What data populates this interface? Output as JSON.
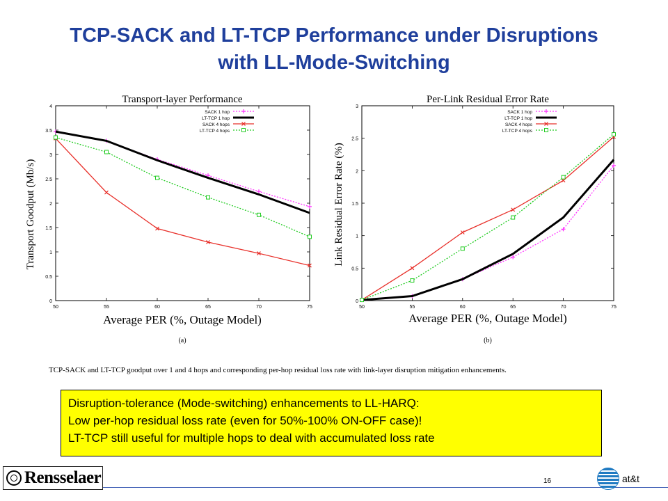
{
  "slide": {
    "title_line1": "TCP-SACK and LT-TCP Performance under Disruptions",
    "title_line2": "with LL-Mode-Switching",
    "caption": "TCP-SACK and LT-TCP goodput over 1 and 4 hops and corresponding per-hop residual loss rate with link-layer disruption mitigation enhancements.",
    "note_lines": [
      "Disruption-tolerance (Mode-switching) enhancements to LL-HARQ:",
      "Low per-hop residual loss rate (even for 50%-100% ON-OFF case)!",
      "LT-TCP still useful for multiple hops to deal with accumulated loss rate"
    ],
    "page_number": "16",
    "logo_left_text": "Rensselaer",
    "logo_right_text": "at&t",
    "colors": {
      "title": "#1f3f9c",
      "note_bg": "#ffff00",
      "footer_line": "#3b5bb3"
    }
  },
  "chart_data": [
    {
      "type": "line",
      "title": "Transport-layer Performance",
      "xlabel": "Average PER (%, Outage Model)",
      "ylabel": "Transport Goodput (Mb/s)",
      "sublabel": "(a)",
      "xlim": [
        50,
        75
      ],
      "ylim": [
        0,
        4
      ],
      "xticks": [
        "50",
        "55",
        "60",
        "65",
        "70",
        "75"
      ],
      "yticks": [
        "0",
        "0.5",
        "1",
        "1.5",
        "2",
        "2.5",
        "3",
        "3.5",
        "4"
      ],
      "x": [
        50,
        55,
        60,
        65,
        70,
        75
      ],
      "legend_position": "top-right",
      "series": [
        {
          "name": "SACK 1 hop",
          "color": "#ff33ff",
          "dash": "dotted",
          "marker": "plus",
          "values": [
            3.47,
            3.28,
            2.9,
            2.57,
            2.24,
            1.93
          ]
        },
        {
          "name": "LT-TCP 1 hop",
          "color": "#000000",
          "dash": "solid",
          "marker": "none",
          "width": "thick",
          "values": [
            3.47,
            3.28,
            2.88,
            2.52,
            2.18,
            1.8
          ]
        },
        {
          "name": "SACK 4 hops",
          "color": "#e8302a",
          "dash": "solid",
          "marker": "x",
          "values": [
            3.33,
            2.22,
            1.48,
            1.2,
            0.97,
            0.72
          ]
        },
        {
          "name": "LT-TCP 4 hops",
          "color": "#22cc22",
          "dash": "dotted",
          "marker": "square",
          "values": [
            3.35,
            3.05,
            2.52,
            2.12,
            1.76,
            1.31
          ]
        }
      ]
    },
    {
      "type": "line",
      "title": "Per-Link Residual Error Rate",
      "xlabel": "Average PER (%, Outage Model)",
      "ylabel": "Link Residual Error Rate (%)",
      "sublabel": "(b)",
      "xlim": [
        50,
        75
      ],
      "ylim": [
        0,
        3
      ],
      "xticks": [
        "50",
        "55",
        "60",
        "65",
        "70",
        "75"
      ],
      "yticks": [
        "0",
        "0.5",
        "1",
        "1.5",
        "2",
        "2.5",
        "3"
      ],
      "x": [
        50,
        55,
        60,
        65,
        70,
        75
      ],
      "legend_position": "top-left",
      "series": [
        {
          "name": "SACK 1 hop",
          "color": "#ff33ff",
          "dash": "dotted",
          "marker": "plus",
          "values": [
            0.01,
            0.07,
            0.33,
            0.67,
            1.1,
            2.08
          ]
        },
        {
          "name": "LT-TCP 1 hop",
          "color": "#000000",
          "dash": "solid",
          "marker": "none",
          "width": "thick",
          "values": [
            0.01,
            0.07,
            0.33,
            0.72,
            1.28,
            2.17
          ]
        },
        {
          "name": "SACK 4 hops",
          "color": "#e8302a",
          "dash": "solid",
          "marker": "x",
          "values": [
            0.01,
            0.5,
            1.05,
            1.4,
            1.85,
            2.52
          ]
        },
        {
          "name": "LT-TCP 4 hops",
          "color": "#22cc22",
          "dash": "dotted",
          "marker": "square",
          "values": [
            0.01,
            0.31,
            0.8,
            1.28,
            1.9,
            2.56
          ]
        }
      ]
    }
  ]
}
